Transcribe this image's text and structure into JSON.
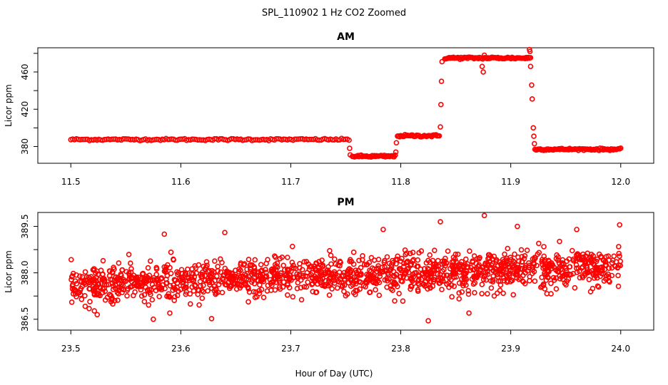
{
  "figure": {
    "title": "SPL_110902  1 Hz CO2 Zoomed",
    "xlabel": "Hour of Day (UTC)"
  },
  "chart_data": [
    {
      "type": "scatter",
      "title": "AM",
      "xlabel": "",
      "ylabel": "Licor ppm",
      "xlim": [
        11.47,
        12.03
      ],
      "ylim": [
        362,
        486
      ],
      "xticks": [
        11.5,
        11.6,
        11.7,
        11.8,
        11.9,
        12.0
      ],
      "xtick_labels": [
        "11.5",
        "11.6",
        "11.7",
        "11.8",
        "11.9",
        "12.0"
      ],
      "yticks": [
        380,
        420,
        460
      ],
      "ytick_labels": [
        "380",
        "420",
        "460"
      ],
      "marker_color": "#ff0000",
      "grid": false,
      "segments": [
        {
          "x_start": 11.5,
          "x_end": 11.753,
          "y": 387.5,
          "spread": 1.2,
          "count": 150
        },
        {
          "x_start": 11.756,
          "x_end": 11.795,
          "y": 369.5,
          "spread": 1.3,
          "count": 40
        },
        {
          "x_start": 11.797,
          "x_end": 11.835,
          "y": 391.5,
          "spread": 1.3,
          "count": 40
        },
        {
          "x_start": 11.84,
          "x_end": 11.918,
          "y": 475.0,
          "spread": 1.4,
          "count": 80
        },
        {
          "x_start": 11.922,
          "x_end": 12.0,
          "y": 377.0,
          "spread": 1.2,
          "count": 80
        }
      ],
      "transition_points": [
        {
          "x": 11.7535,
          "y": 378
        },
        {
          "x": 11.754,
          "y": 371
        },
        {
          "x": 11.7955,
          "y": 374
        },
        {
          "x": 11.796,
          "y": 384
        },
        {
          "x": 11.836,
          "y": 401
        },
        {
          "x": 11.8365,
          "y": 425
        },
        {
          "x": 11.837,
          "y": 450
        },
        {
          "x": 11.8375,
          "y": 471
        },
        {
          "x": 11.874,
          "y": 466
        },
        {
          "x": 11.875,
          "y": 460
        },
        {
          "x": 11.876,
          "y": 478
        },
        {
          "x": 11.917,
          "y": 484
        },
        {
          "x": 11.9175,
          "y": 482
        },
        {
          "x": 11.918,
          "y": 466
        },
        {
          "x": 11.919,
          "y": 446
        },
        {
          "x": 11.9195,
          "y": 431
        },
        {
          "x": 11.9205,
          "y": 400
        },
        {
          "x": 11.921,
          "y": 391
        },
        {
          "x": 11.9215,
          "y": 383
        }
      ]
    },
    {
      "type": "scatter",
      "title": "PM",
      "xlabel": "",
      "ylabel": "Licor ppm",
      "xlim": [
        23.47,
        24.03
      ],
      "ylim": [
        386.15,
        389.95
      ],
      "xticks": [
        23.5,
        23.6,
        23.7,
        23.8,
        23.9,
        24.0
      ],
      "xtick_labels": [
        "23.5",
        "23.6",
        "23.7",
        "23.8",
        "23.9",
        "24.0"
      ],
      "yticks": [
        386.5,
        388.0,
        389.5
      ],
      "ytick_labels": [
        "386.5",
        "388.0",
        "389.5"
      ],
      "marker_color": "#ff0000",
      "grid": false,
      "noise_cloud": {
        "x_start": 23.5,
        "x_end": 24.0,
        "count": 1500,
        "y_start": 387.6,
        "y_end": 388.2,
        "spread": 0.55
      },
      "outliers": [
        {
          "x": 23.836,
          "y": 389.65
        },
        {
          "x": 23.876,
          "y": 389.85
        },
        {
          "x": 23.999,
          "y": 389.55
        },
        {
          "x": 23.906,
          "y": 389.5
        },
        {
          "x": 23.825,
          "y": 386.45
        },
        {
          "x": 23.575,
          "y": 386.5
        },
        {
          "x": 23.628,
          "y": 386.52
        },
        {
          "x": 23.524,
          "y": 386.65
        },
        {
          "x": 23.585,
          "y": 389.25
        },
        {
          "x": 23.64,
          "y": 389.3
        },
        {
          "x": 23.862,
          "y": 386.7
        },
        {
          "x": 23.59,
          "y": 386.7
        },
        {
          "x": 23.96,
          "y": 389.4
        },
        {
          "x": 23.784,
          "y": 389.4
        }
      ]
    }
  ]
}
